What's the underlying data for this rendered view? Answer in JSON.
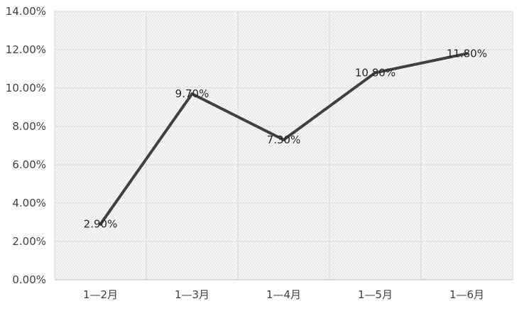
{
  "chart_data": {
    "type": "line",
    "title": "",
    "xlabel": "",
    "ylabel": "",
    "categories": [
      "1—2月",
      "1—3月",
      "1—4月",
      "1—5月",
      "1—6月"
    ],
    "series": [
      {
        "values": [
          2.9,
          9.7,
          7.3,
          10.8,
          11.8
        ],
        "data_labels": [
          "2.90%",
          "9.70%",
          "7.30%",
          "10.80%",
          "11.80%"
        ],
        "color": "#404040"
      }
    ],
    "ylim": [
      0,
      14
    ],
    "y_ticks": [
      0,
      2,
      4,
      6,
      8,
      10,
      12,
      14
    ],
    "y_tick_labels": [
      "0.00%",
      "2.00%",
      "4.00%",
      "6.00%",
      "8.00%",
      "10.00%",
      "12.00%",
      "14.00%"
    ],
    "grid": true,
    "legend": "none",
    "plot_background": "hatched-light-gray",
    "colors": {
      "grid": "#d9d9d9",
      "hatch": "#e4e4e4",
      "line": "#404040",
      "text": "#404040"
    }
  }
}
